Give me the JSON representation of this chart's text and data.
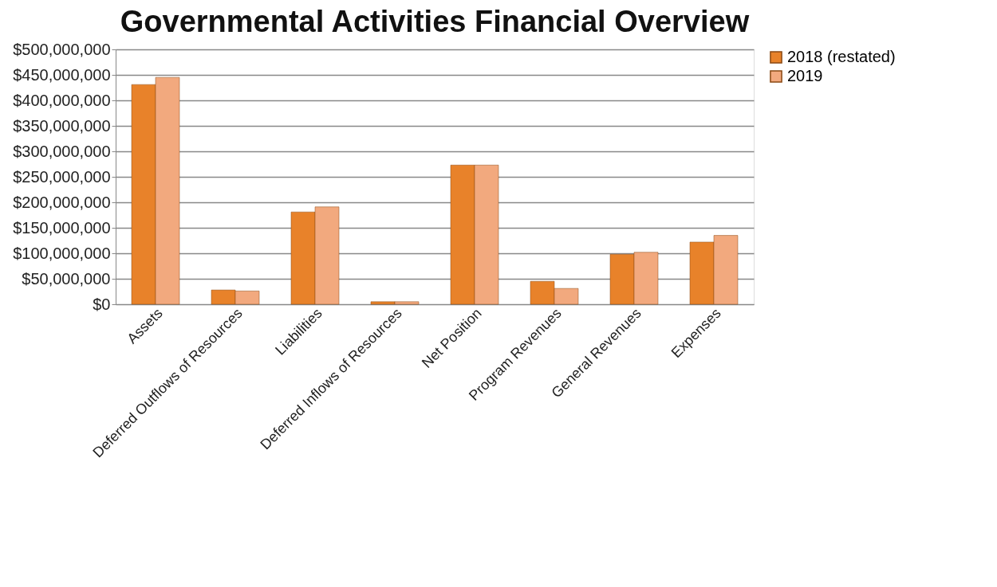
{
  "chart_data": {
    "type": "bar",
    "title": "Governmental Activities Financial Overview",
    "categories": [
      "Assets",
      "Deferred Outflows of Resources",
      "Liabilities",
      "Deferred Inflows of Resources",
      "Net Position",
      "Program Revenues",
      "General Revenues",
      "Expenses"
    ],
    "series": [
      {
        "name": "2018 (restated)",
        "color": "#e8822a",
        "values": [
          431000000,
          28000000,
          181000000,
          5000000,
          273000000,
          45000000,
          98000000,
          122000000
        ]
      },
      {
        "name": "2019",
        "color": "#f2a97e",
        "values": [
          445000000,
          26000000,
          191000000,
          5000000,
          273000000,
          31000000,
          102000000,
          135000000
        ]
      }
    ],
    "ylim": [
      0,
      500000000
    ],
    "yticks": [
      {
        "value": 0,
        "label": "$0"
      },
      {
        "value": 50000000,
        "label": "$50,000,000"
      },
      {
        "value": 100000000,
        "label": "$100,000,000"
      },
      {
        "value": 150000000,
        "label": "$150,000,000"
      },
      {
        "value": 200000000,
        "label": "$200,000,000"
      },
      {
        "value": 250000000,
        "label": "$250,000,000"
      },
      {
        "value": 300000000,
        "label": "$300,000,000"
      },
      {
        "value": 350000000,
        "label": "$350,000,000"
      },
      {
        "value": 400000000,
        "label": "$400,000,000"
      },
      {
        "value": 450000000,
        "label": "$450,000,000"
      },
      {
        "value": 500000000,
        "label": "$500,000,000"
      }
    ],
    "grid": "y",
    "legend": "right"
  }
}
